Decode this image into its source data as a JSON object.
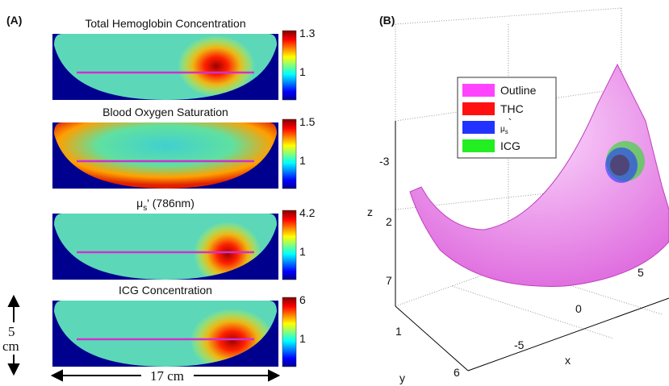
{
  "panel_a": {
    "label": "(A)",
    "maps": [
      {
        "title": "Total Hemoglobin Concentration",
        "colorbar_top": "1.3",
        "colorbar_mid": "1"
      },
      {
        "title": "Blood Oxygen Saturation",
        "colorbar_top": "1.5",
        "colorbar_mid": "1"
      },
      {
        "title_symbol": "μ",
        "title_subscript": "s",
        "title_rest": "' (786nm)",
        "colorbar_top": "4.2",
        "colorbar_mid": "1"
      },
      {
        "title": "ICG Concentration",
        "colorbar_top": "6",
        "colorbar_mid": "1"
      }
    ],
    "scale_vertical": {
      "value": "5",
      "unit": "cm"
    },
    "scale_horizontal": "17 cm"
  },
  "panel_b": {
    "label": "(B)",
    "legend": [
      {
        "name": "Outline",
        "color": "#ff44ff"
      },
      {
        "name": "THC",
        "color": "#ff1111"
      },
      {
        "symbol": "μ",
        "subscript": "s",
        "suffix": "`",
        "color": "#2233ff"
      },
      {
        "name": "ICG",
        "color": "#22ee22"
      }
    ],
    "axes": {
      "z_label": "z",
      "z_ticks": [
        "-3",
        "2",
        "7"
      ],
      "x_label": "x",
      "x_ticks": [
        "5",
        "0",
        "-5"
      ],
      "y_label": "y",
      "y_ticks": [
        "1",
        "6"
      ]
    }
  }
}
